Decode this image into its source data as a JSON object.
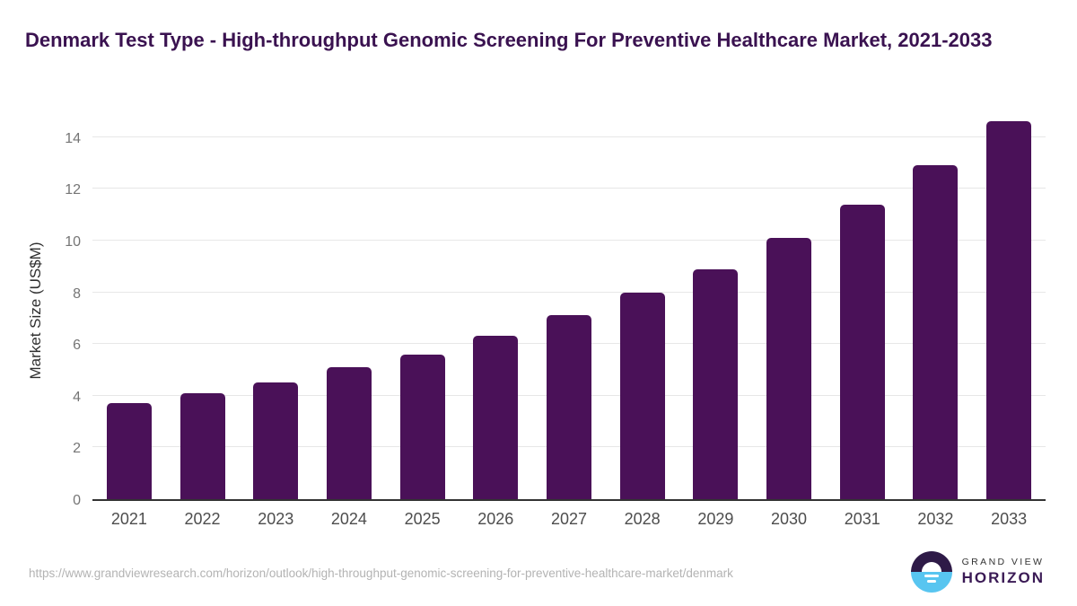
{
  "title": "Denmark Test Type - High-throughput Genomic Screening For Preventive Healthcare Market, 2021-2033",
  "chart_data": {
    "type": "bar",
    "categories": [
      "2021",
      "2022",
      "2023",
      "2024",
      "2025",
      "2026",
      "2027",
      "2028",
      "2029",
      "2030",
      "2031",
      "2032",
      "2033"
    ],
    "values": [
      3.7,
      4.1,
      4.5,
      5.1,
      5.6,
      6.3,
      7.1,
      8.0,
      8.9,
      10.1,
      11.4,
      12.9,
      14.6
    ],
    "title": "Denmark Test Type - High-throughput Genomic Screening For Preventive Healthcare Market, 2021-2033",
    "xlabel": "",
    "ylabel": "Market Size (US$M)",
    "yticks": [
      0,
      2,
      4,
      6,
      8,
      10,
      12,
      14
    ],
    "ylim": [
      0,
      14.75
    ],
    "grid": true,
    "legend": false,
    "bar_color": "#4a1158"
  },
  "footer": {
    "source_url": "https://www.grandviewresearch.com/horizon/outlook/high-throughput-genomic-screening-for-preventive-healthcare-market/denmark",
    "logo": {
      "line1": "GRAND VIEW",
      "line2": "HORIZON"
    }
  },
  "colors": {
    "title": "#3a1250",
    "bar": "#4a1158",
    "gridline": "#e7e7e7",
    "axis_line": "#333333",
    "tick_label": "#757575",
    "x_label": "#4d4d4d",
    "url_text": "#b3b3b3",
    "logo_purple": "#2e1a47",
    "logo_blue": "#58c5f0"
  }
}
